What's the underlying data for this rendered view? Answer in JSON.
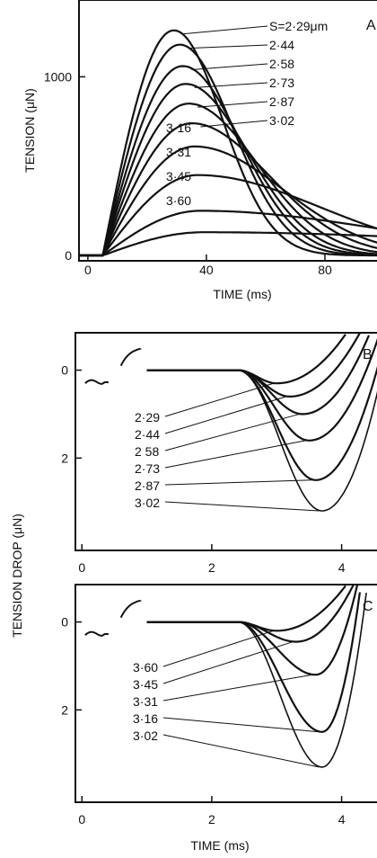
{
  "panels": {
    "A": {
      "label": "A",
      "xlabel": "TIME (ms)",
      "ylabel": "TENSION (μN)"
    },
    "B": {
      "label": "B"
    },
    "C": {
      "label": "C"
    }
  },
  "shared": {
    "ylabel": "TENSION DROP (μN)",
    "xlabel": "TIME (ms)"
  },
  "chart_data": [
    {
      "id": "A",
      "type": "line",
      "title": "",
      "xlabel": "TIME (ms)",
      "ylabel": "TENSION (μN)",
      "xlim": [
        -3,
        100
      ],
      "ylim": [
        -30,
        1430
      ],
      "x_ticks": [
        0,
        40,
        80
      ],
      "y_ticks": [
        0,
        1000
      ],
      "legend_prefix": "S=",
      "legend_unit": "μm",
      "series": [
        {
          "name": "2·29",
          "peak_time": 29,
          "peak": 1260,
          "tau": 22
        },
        {
          "name": "2·44",
          "peak_time": 31,
          "peak": 1180,
          "tau": 24
        },
        {
          "name": "2·58",
          "peak_time": 32,
          "peak": 1060,
          "tau": 26
        },
        {
          "name": "2·73",
          "peak_time": 33,
          "peak": 960,
          "tau": 28
        },
        {
          "name": "2·87",
          "peak_time": 34,
          "peak": 850,
          "tau": 31
        },
        {
          "name": "3·02",
          "peak_time": 35,
          "peak": 740,
          "tau": 35
        },
        {
          "name": "3·16",
          "peak_time": 36,
          "peak": 610,
          "tau": 40
        },
        {
          "name": "3·31",
          "peak_time": 37,
          "peak": 450,
          "tau": 55
        },
        {
          "name": "3·45",
          "peak_time": 38,
          "peak": 250,
          "tau": 80
        },
        {
          "name": "3·60",
          "peak_time": 39,
          "peak": 130,
          "tau": 130
        }
      ]
    },
    {
      "id": "B",
      "type": "line",
      "title": "",
      "xlabel": "",
      "ylabel": "",
      "xlim": [
        -0.1,
        4.6
      ],
      "ylim": [
        -0.85,
        4.1
      ],
      "y_inverted": true,
      "x_ticks": [
        0,
        2,
        4
      ],
      "y_ticks": [
        0,
        2
      ],
      "series": [
        {
          "name": "2·29",
          "min_time": 3.0,
          "depth": 0.3,
          "rise_end": 4.1
        },
        {
          "name": "2·44",
          "min_time": 3.2,
          "depth": 0.6,
          "rise_end": 4.3
        },
        {
          "name": "2 58",
          "min_time": 3.4,
          "depth": 1.0,
          "rise_end": 4.45
        },
        {
          "name": "2·73",
          "min_time": 3.5,
          "depth": 1.6,
          "rise_end": 4.6
        },
        {
          "name": "2·87",
          "min_time": 3.6,
          "depth": 2.5,
          "rise_end": 4.7
        },
        {
          "name": "3·02",
          "min_time": 3.7,
          "depth": 3.2,
          "rise_end": 4.75
        }
      ]
    },
    {
      "id": "C",
      "type": "line",
      "title": "",
      "xlabel": "TIME (ms)",
      "ylabel": "",
      "xlim": [
        -0.1,
        4.6
      ],
      "ylim": [
        -0.85,
        4.1
      ],
      "y_inverted": true,
      "x_ticks": [
        0,
        2,
        4
      ],
      "y_ticks": [
        0,
        2
      ],
      "series": [
        {
          "name": "3·60",
          "min_time": 3.0,
          "depth": 0.2,
          "rise_end": 4.1
        },
        {
          "name": "3·45",
          "min_time": 3.3,
          "depth": 0.45,
          "rise_end": 4.2
        },
        {
          "name": "3·31",
          "min_time": 3.6,
          "depth": 1.2,
          "rise_end": 4.25
        },
        {
          "name": "3·16",
          "min_time": 3.7,
          "depth": 2.5,
          "rise_end": 4.3
        },
        {
          "name": "3·02",
          "min_time": 3.7,
          "depth": 3.3,
          "rise_end": 4.4
        }
      ]
    }
  ]
}
